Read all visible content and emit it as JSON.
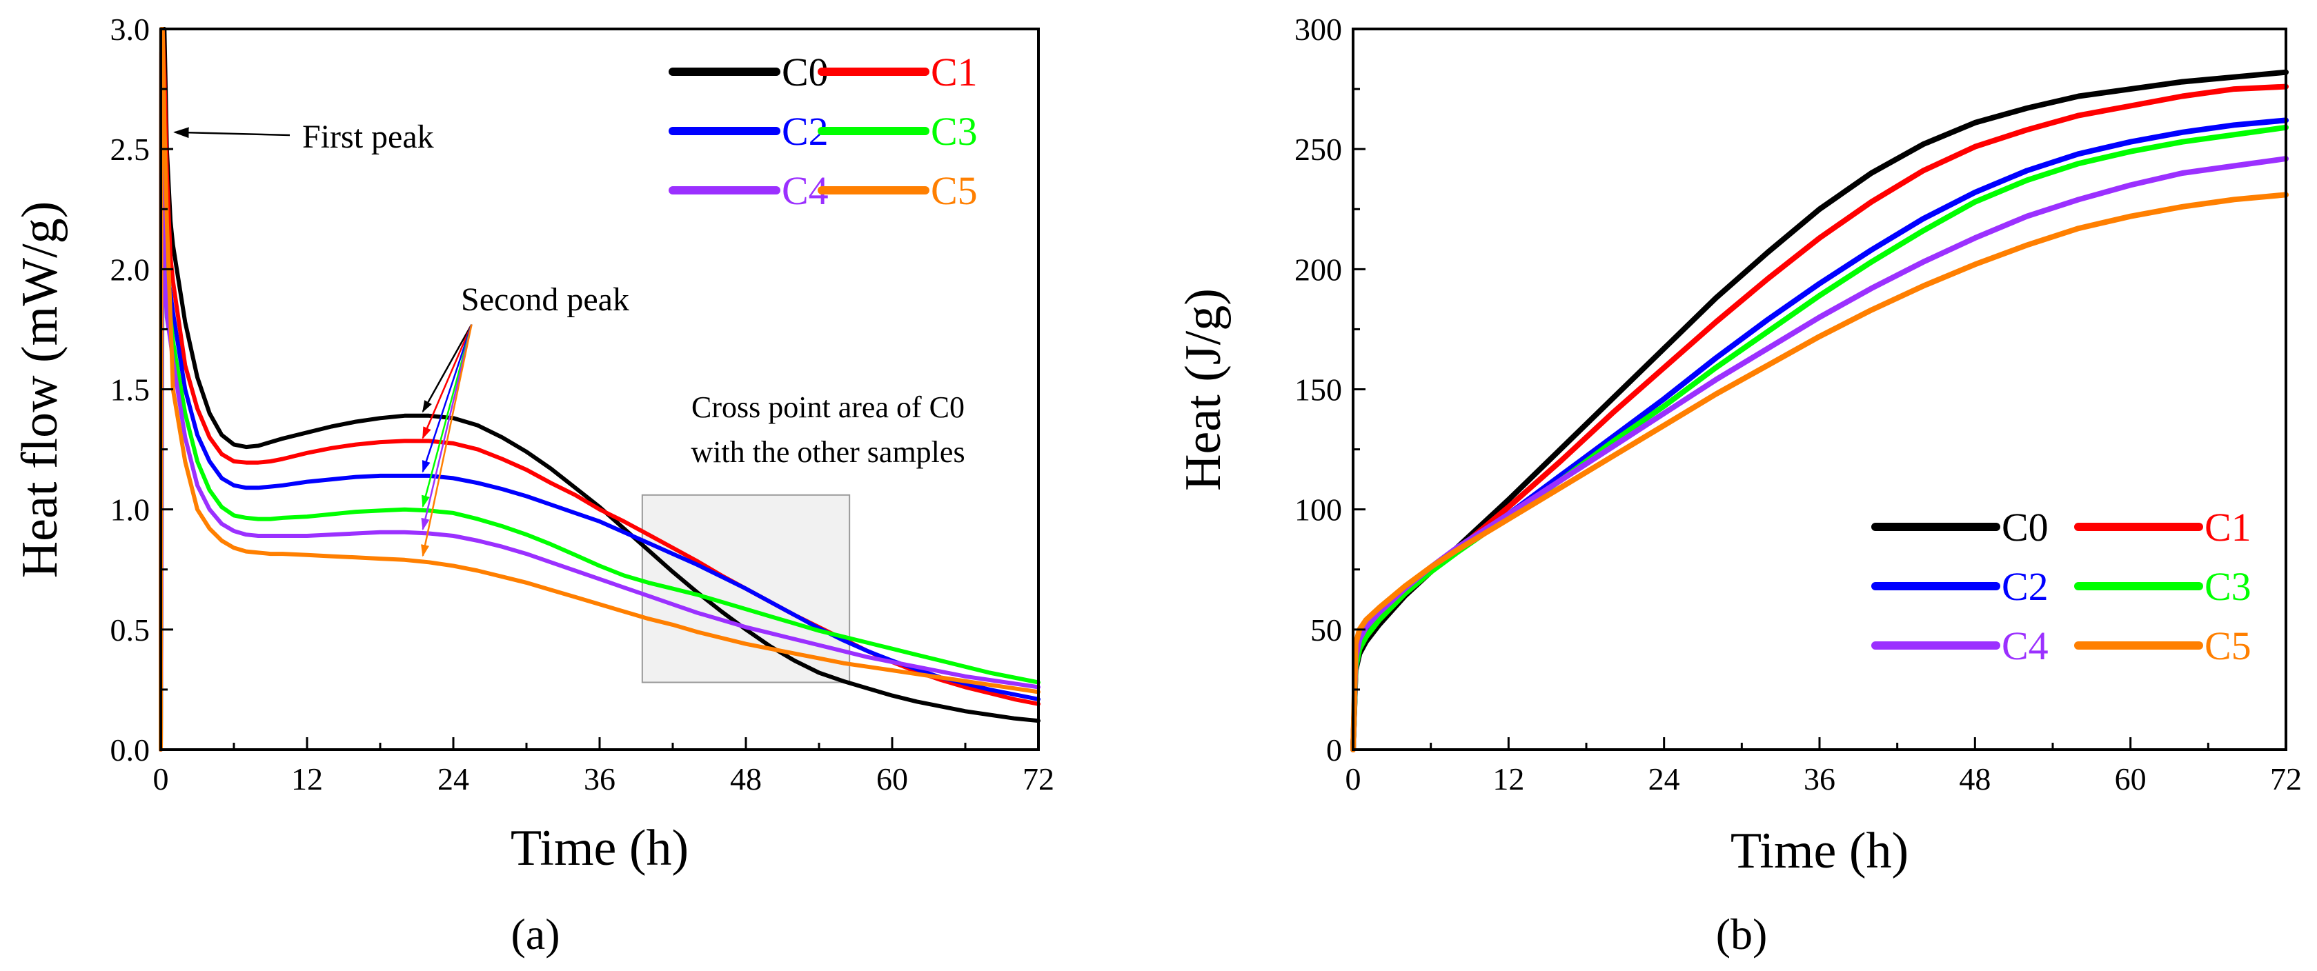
{
  "figure": {
    "panels": [
      "(a)",
      "(b)"
    ]
  },
  "chart_data": [
    {
      "type": "line",
      "panel_label": "(a)",
      "xlabel": "Time (h)",
      "ylabel": "Heat flow (mW/g)",
      "xlim": [
        0,
        72
      ],
      "ylim": [
        0,
        3.0
      ],
      "xticks": [
        0,
        12,
        24,
        36,
        48,
        60,
        72
      ],
      "yticks": [
        0.0,
        0.5,
        1.0,
        1.5,
        2.0,
        2.5,
        3.0
      ],
      "ytick_labels": [
        "0.0",
        "0.5",
        "1.0",
        "1.5",
        "2.0",
        "2.5",
        "3.0"
      ],
      "grid": false,
      "legend_position": "top-right",
      "series": [
        {
          "name": "C0",
          "color": "#000000",
          "x": [
            0,
            0.05,
            0.15,
            0.3,
            0.5,
            0.8,
            1,
            2,
            3,
            4,
            5,
            6,
            7,
            8,
            9,
            10,
            12,
            14,
            16,
            18,
            20,
            22,
            24,
            26,
            28,
            30,
            32,
            34,
            36,
            38,
            40,
            42,
            44,
            46,
            48,
            50,
            52,
            54,
            56,
            58,
            60,
            62,
            64,
            66,
            68,
            70,
            72
          ],
          "y": [
            0.0,
            3.0,
            3.0,
            3.0,
            2.5,
            2.2,
            2.1,
            1.78,
            1.55,
            1.4,
            1.31,
            1.27,
            1.26,
            1.265,
            1.28,
            1.295,
            1.32,
            1.345,
            1.365,
            1.38,
            1.39,
            1.39,
            1.38,
            1.35,
            1.3,
            1.24,
            1.17,
            1.09,
            1.01,
            0.92,
            0.83,
            0.74,
            0.655,
            0.575,
            0.5,
            0.43,
            0.37,
            0.32,
            0.285,
            0.255,
            0.225,
            0.2,
            0.18,
            0.16,
            0.145,
            0.13,
            0.12
          ]
        },
        {
          "name": "C1",
          "color": "#ff0000",
          "x": [
            0,
            0.05,
            0.15,
            0.3,
            0.5,
            0.8,
            1,
            2,
            3,
            4,
            5,
            6,
            7,
            8,
            9,
            10,
            12,
            14,
            16,
            18,
            20,
            22,
            24,
            26,
            28,
            30,
            32,
            34,
            36,
            38,
            40,
            42,
            44,
            46,
            48,
            50,
            52,
            54,
            56,
            58,
            60,
            62,
            64,
            66,
            68,
            70,
            72
          ],
          "y": [
            0.0,
            2.9,
            3.0,
            2.8,
            2.4,
            2.05,
            1.95,
            1.6,
            1.42,
            1.3,
            1.23,
            1.2,
            1.195,
            1.195,
            1.2,
            1.21,
            1.235,
            1.255,
            1.27,
            1.28,
            1.285,
            1.285,
            1.275,
            1.25,
            1.21,
            1.165,
            1.11,
            1.06,
            1.0,
            0.95,
            0.895,
            0.84,
            0.785,
            0.725,
            0.67,
            0.615,
            0.56,
            0.51,
            0.46,
            0.41,
            0.365,
            0.325,
            0.29,
            0.26,
            0.235,
            0.21,
            0.19
          ]
        },
        {
          "name": "C2",
          "color": "#0000ff",
          "x": [
            0,
            0.05,
            0.15,
            0.3,
            0.5,
            0.8,
            1,
            2,
            3,
            4,
            5,
            6,
            7,
            8,
            9,
            10,
            12,
            14,
            16,
            18,
            20,
            22,
            24,
            26,
            28,
            30,
            32,
            34,
            36,
            38,
            40,
            42,
            44,
            46,
            48,
            50,
            52,
            54,
            56,
            58,
            60,
            62,
            64,
            66,
            68,
            70,
            72
          ],
          "y": [
            0.0,
            2.4,
            2.2,
            2.1,
            2.0,
            1.9,
            1.82,
            1.5,
            1.31,
            1.2,
            1.13,
            1.1,
            1.09,
            1.09,
            1.095,
            1.1,
            1.115,
            1.125,
            1.135,
            1.14,
            1.14,
            1.14,
            1.13,
            1.11,
            1.085,
            1.055,
            1.02,
            0.985,
            0.95,
            0.905,
            0.86,
            0.815,
            0.77,
            0.72,
            0.67,
            0.615,
            0.56,
            0.505,
            0.455,
            0.41,
            0.37,
            0.335,
            0.3,
            0.275,
            0.25,
            0.23,
            0.21
          ]
        },
        {
          "name": "C3",
          "color": "#00ff00",
          "x": [
            0,
            0.05,
            0.15,
            0.3,
            0.5,
            0.8,
            1,
            2,
            3,
            4,
            5,
            6,
            7,
            8,
            9,
            10,
            12,
            14,
            16,
            18,
            20,
            22,
            24,
            26,
            28,
            30,
            32,
            34,
            36,
            38,
            40,
            42,
            44,
            46,
            48,
            50,
            52,
            54,
            56,
            58,
            60,
            62,
            64,
            66,
            68,
            70,
            72
          ],
          "y": [
            0.0,
            0.62,
            2.3,
            2.1,
            1.9,
            1.8,
            1.7,
            1.4,
            1.2,
            1.08,
            1.01,
            0.975,
            0.965,
            0.96,
            0.96,
            0.965,
            0.97,
            0.98,
            0.99,
            0.995,
            1.0,
            0.995,
            0.985,
            0.96,
            0.93,
            0.895,
            0.855,
            0.81,
            0.765,
            0.725,
            0.695,
            0.67,
            0.645,
            0.615,
            0.585,
            0.555,
            0.525,
            0.495,
            0.47,
            0.445,
            0.42,
            0.395,
            0.37,
            0.345,
            0.32,
            0.3,
            0.28
          ]
        },
        {
          "name": "C4",
          "color": "#9b30ff",
          "x": [
            0,
            0.05,
            0.15,
            0.3,
            0.5,
            0.8,
            1,
            2,
            3,
            4,
            5,
            6,
            7,
            8,
            9,
            10,
            12,
            14,
            16,
            18,
            20,
            22,
            24,
            26,
            28,
            30,
            32,
            34,
            36,
            38,
            40,
            42,
            44,
            46,
            48,
            50,
            52,
            54,
            56,
            58,
            60,
            62,
            64,
            66,
            68,
            70,
            72
          ],
          "y": [
            0.0,
            0.65,
            2.9,
            2.0,
            1.8,
            1.7,
            1.62,
            1.3,
            1.1,
            1.0,
            0.94,
            0.91,
            0.895,
            0.89,
            0.89,
            0.89,
            0.89,
            0.895,
            0.9,
            0.905,
            0.905,
            0.9,
            0.89,
            0.87,
            0.845,
            0.815,
            0.78,
            0.745,
            0.71,
            0.675,
            0.64,
            0.605,
            0.57,
            0.54,
            0.51,
            0.485,
            0.46,
            0.435,
            0.41,
            0.385,
            0.365,
            0.345,
            0.325,
            0.305,
            0.29,
            0.275,
            0.26
          ]
        },
        {
          "name": "C5",
          "color": "#ff7f00",
          "x": [
            0,
            0.05,
            0.15,
            0.3,
            0.5,
            0.8,
            1,
            2,
            3,
            4,
            5,
            6,
            7,
            8,
            9,
            10,
            12,
            14,
            16,
            18,
            20,
            22,
            24,
            26,
            28,
            30,
            32,
            34,
            36,
            38,
            40,
            42,
            44,
            46,
            48,
            50,
            52,
            54,
            56,
            58,
            60,
            62,
            64,
            66,
            68,
            70,
            72
          ],
          "y": [
            0.0,
            3.0,
            3.0,
            2.6,
            2.2,
            1.8,
            1.5,
            1.2,
            1.0,
            0.92,
            0.87,
            0.84,
            0.825,
            0.82,
            0.815,
            0.815,
            0.81,
            0.805,
            0.8,
            0.795,
            0.79,
            0.78,
            0.765,
            0.745,
            0.72,
            0.695,
            0.665,
            0.635,
            0.605,
            0.575,
            0.545,
            0.52,
            0.49,
            0.465,
            0.44,
            0.42,
            0.4,
            0.38,
            0.36,
            0.345,
            0.33,
            0.315,
            0.3,
            0.285,
            0.27,
            0.255,
            0.24
          ]
        }
      ],
      "annotations": {
        "first_peak": "First peak",
        "second_peak": "Second peak",
        "cross_point_line1": "Cross point area of C0",
        "cross_point_line2": "with the other samples",
        "cross_point_box": {
          "x": [
            39.5,
            56.5
          ],
          "y": [
            0.28,
            1.06
          ]
        },
        "first_peak_target": {
          "x": 0.7,
          "y": 2.57
        },
        "second_peak_targets": [
          {
            "series": "C0",
            "x": 21.5,
            "y": 1.39
          },
          {
            "series": "C1",
            "x": 21.5,
            "y": 1.28
          },
          {
            "series": "C2",
            "x": 21.5,
            "y": 1.14
          },
          {
            "series": "C3",
            "x": 21.5,
            "y": 0.995
          },
          {
            "series": "C4",
            "x": 21.5,
            "y": 0.9
          },
          {
            "series": "C5",
            "x": 21.5,
            "y": 0.79
          }
        ],
        "second_peak_anchor": {
          "x": 25.5,
          "y": 1.77
        }
      }
    },
    {
      "type": "line",
      "panel_label": "(b)",
      "xlabel": "Time (h)",
      "ylabel": "Heat (J/g)",
      "xlim": [
        0,
        72
      ],
      "ylim": [
        0,
        300
      ],
      "xticks": [
        0,
        12,
        24,
        36,
        48,
        60,
        72
      ],
      "yticks": [
        0,
        50,
        100,
        150,
        200,
        250,
        300
      ],
      "grid": false,
      "legend_position": "bottom-right",
      "series": [
        {
          "name": "C0",
          "color": "#000000",
          "x": [
            0,
            0.2,
            0.5,
            1,
            2,
            4,
            6,
            8,
            12,
            16,
            20,
            24,
            28,
            32,
            36,
            40,
            44,
            48,
            52,
            56,
            60,
            64,
            68,
            72
          ],
          "y": [
            0,
            33,
            40,
            45,
            52,
            64,
            74,
            84,
            104,
            125,
            146,
            167,
            188,
            207,
            225,
            240,
            252,
            261,
            267,
            272,
            275,
            278,
            280,
            282
          ]
        },
        {
          "name": "C1",
          "color": "#ff0000",
          "x": [
            0,
            0.2,
            0.5,
            1,
            2,
            4,
            6,
            8,
            12,
            16,
            20,
            24,
            28,
            32,
            36,
            40,
            44,
            48,
            52,
            56,
            60,
            64,
            68,
            72
          ],
          "y": [
            0,
            35,
            42,
            47,
            54,
            65,
            74,
            83,
            101,
            120,
            140,
            159,
            178,
            196,
            213,
            228,
            241,
            251,
            258,
            264,
            268,
            272,
            275,
            276
          ]
        },
        {
          "name": "C2",
          "color": "#0000ff",
          "x": [
            0,
            0.2,
            0.5,
            1,
            2,
            4,
            6,
            8,
            12,
            16,
            20,
            24,
            28,
            32,
            36,
            40,
            44,
            48,
            52,
            56,
            60,
            64,
            68,
            72
          ],
          "y": [
            0,
            36,
            44,
            49,
            55,
            66,
            75,
            83,
            98,
            114,
            130,
            146,
            163,
            179,
            194,
            208,
            221,
            232,
            241,
            248,
            253,
            257,
            260,
            262
          ]
        },
        {
          "name": "C3",
          "color": "#00ff00",
          "x": [
            0,
            0.2,
            0.5,
            1,
            2,
            4,
            6,
            8,
            12,
            16,
            20,
            24,
            28,
            32,
            36,
            40,
            44,
            48,
            52,
            56,
            60,
            64,
            68,
            72
          ],
          "y": [
            0,
            34,
            42,
            47,
            54,
            65,
            74,
            82,
            97,
            112,
            128,
            143,
            159,
            174,
            189,
            203,
            216,
            228,
            237,
            244,
            249,
            253,
            256,
            259
          ]
        },
        {
          "name": "C4",
          "color": "#9b30ff",
          "x": [
            0,
            0.2,
            0.5,
            1,
            2,
            4,
            6,
            8,
            12,
            16,
            20,
            24,
            28,
            32,
            36,
            40,
            44,
            48,
            52,
            56,
            60,
            64,
            68,
            72
          ],
          "y": [
            0,
            38,
            46,
            51,
            57,
            67,
            76,
            84,
            98,
            112,
            126,
            140,
            154,
            167,
            180,
            192,
            203,
            213,
            222,
            229,
            235,
            240,
            243,
            246
          ]
        },
        {
          "name": "C5",
          "color": "#ff7f00",
          "x": [
            0,
            0.2,
            0.5,
            1,
            2,
            4,
            6,
            8,
            12,
            16,
            20,
            24,
            28,
            32,
            36,
            40,
            44,
            48,
            52,
            56,
            60,
            64,
            68,
            72
          ],
          "y": [
            0,
            44,
            50,
            54,
            59,
            68,
            76,
            83,
            96,
            109,
            122,
            135,
            148,
            160,
            172,
            183,
            193,
            202,
            210,
            217,
            222,
            226,
            229,
            231
          ]
        }
      ]
    }
  ]
}
